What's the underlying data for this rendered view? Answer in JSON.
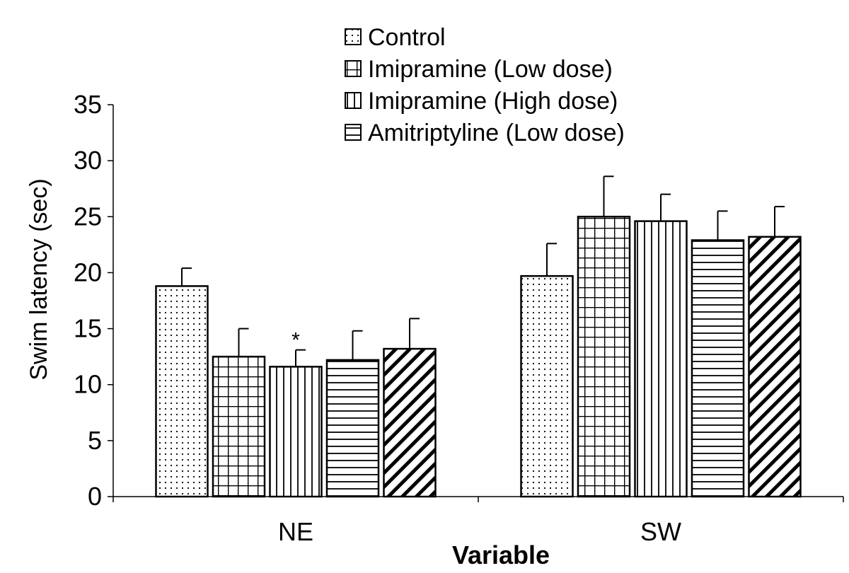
{
  "chart_data": {
    "type": "bar",
    "title": "",
    "xlabel": "Variable",
    "ylabel": "Swim latency (sec)",
    "ylim": [
      0,
      35
    ],
    "yticks": [
      0,
      5,
      10,
      15,
      20,
      25,
      30,
      35
    ],
    "categories": [
      "NE",
      "SW"
    ],
    "legend_position": "top-center",
    "grid": false,
    "series": [
      {
        "name": "Control",
        "pattern": "dots",
        "values": [
          18.8,
          19.7
        ],
        "errors": [
          1.6,
          2.9
        ]
      },
      {
        "name": "Imipramine (Low dose)",
        "pattern": "grid",
        "values": [
          12.5,
          25.0
        ],
        "errors": [
          2.5,
          3.6
        ]
      },
      {
        "name": "Imipramine (High dose)",
        "pattern": "vertical-lines",
        "values": [
          11.6,
          24.6
        ],
        "errors": [
          1.5,
          2.4
        ]
      },
      {
        "name": "Amitriptyline (Low dose)",
        "pattern": "horizontal-lines",
        "values": [
          12.2,
          22.9
        ],
        "errors": [
          2.6,
          2.6
        ]
      },
      {
        "name": "",
        "pattern": "diagonal-lines",
        "values": [
          13.2,
          23.2
        ],
        "errors": [
          2.7,
          2.7
        ]
      }
    ],
    "annotations": [
      {
        "text": "*",
        "category": "NE",
        "series_index": 2
      }
    ]
  },
  "colors": {
    "stroke": "#000000",
    "fill": "#ffffff"
  }
}
